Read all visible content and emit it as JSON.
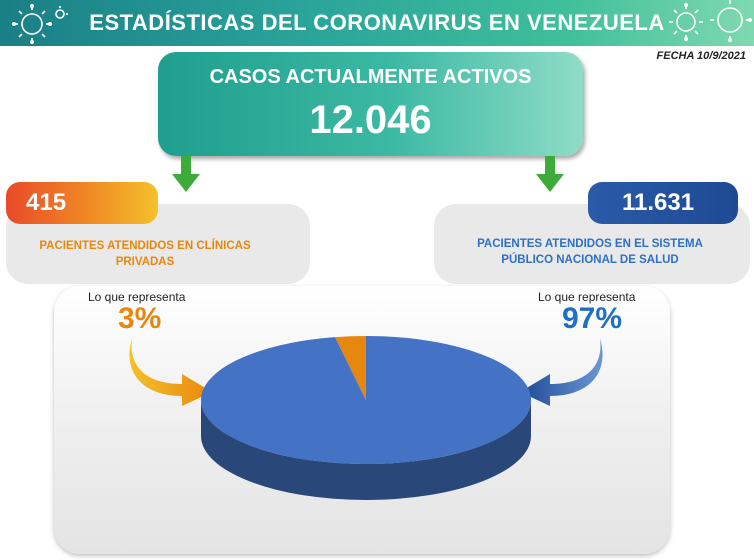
{
  "header": {
    "title": "ESTADÍSTICAS DEL CORONAVIRUS EN VENEZUELA",
    "date": "FECHA 10/9/2021"
  },
  "active_cases": {
    "title": "CASOS ACTUALMENTE ACTIVOS",
    "value": "12.046"
  },
  "private_clinics": {
    "value": "415",
    "label_line1": "PACIENTES ATENDIDOS EN CLÍNICAS",
    "label_line2": "PRIVADAS",
    "represent_label": "Lo que representa",
    "percent": "3%",
    "color": "#e8870e"
  },
  "public_system": {
    "value": "11.631",
    "label_line1": "PACIENTES ATENDIDOS EN EL SISTEMA",
    "label_line2": "PÚBLICO NACIONAL DE SALUD",
    "represent_label": "Lo que representa",
    "percent": "97%",
    "color": "#4472c4"
  },
  "chart_data": {
    "type": "pie",
    "labels": [
      "PACIENTES ATENDIDOS EN CLÍNICAS PRIVADAS",
      "PACIENTES ATENDIDOS EN EL SISTEMA PÚBLICO NACIONAL DE SALUD"
    ],
    "values": [
      3,
      97
    ],
    "counts": [
      415,
      11631
    ],
    "colors": [
      "#e8870e",
      "#4472c4"
    ]
  }
}
